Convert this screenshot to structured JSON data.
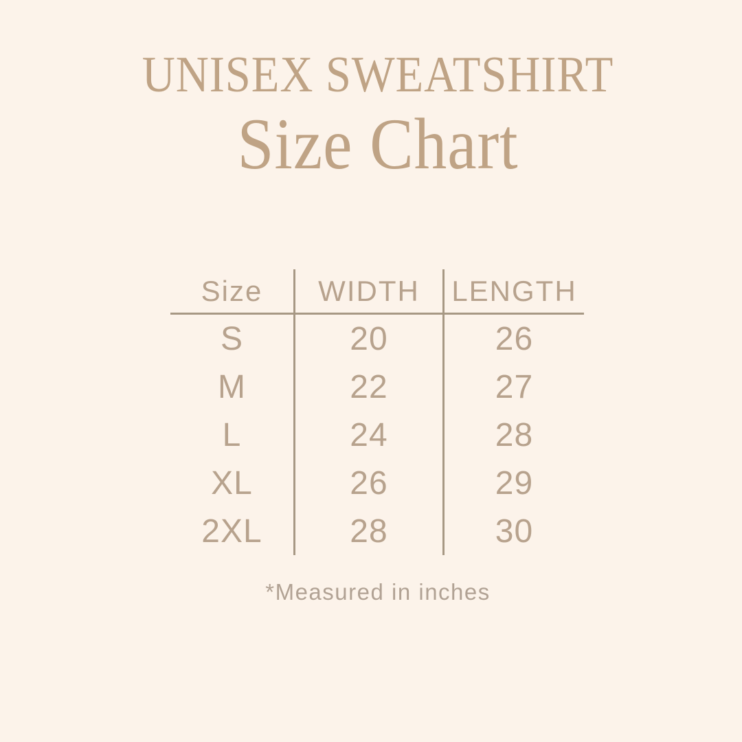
{
  "page": {
    "background_color": "#fcf3ea",
    "accent_color": "#bfa385",
    "table_text_color": "#b7a28d",
    "rule_color": "#a79884",
    "note_color": "#b1a294"
  },
  "header": {
    "title": "UNISEX SWEATSHIRT",
    "subtitle": "Size Chart"
  },
  "chart_data": {
    "type": "table",
    "title": "UNISEX SWEATSHIRT",
    "subtitle": "Size Chart",
    "columns": [
      "Size",
      "WIDTH",
      "LENGTH"
    ],
    "rows": [
      [
        "S",
        20,
        26
      ],
      [
        "M",
        22,
        27
      ],
      [
        "L",
        24,
        28
      ],
      [
        "XL",
        26,
        29
      ],
      [
        "2XL",
        28,
        30
      ]
    ],
    "units": "inches",
    "note": "*Measured in inches"
  },
  "footer": {
    "note": "*Measured in inches"
  }
}
